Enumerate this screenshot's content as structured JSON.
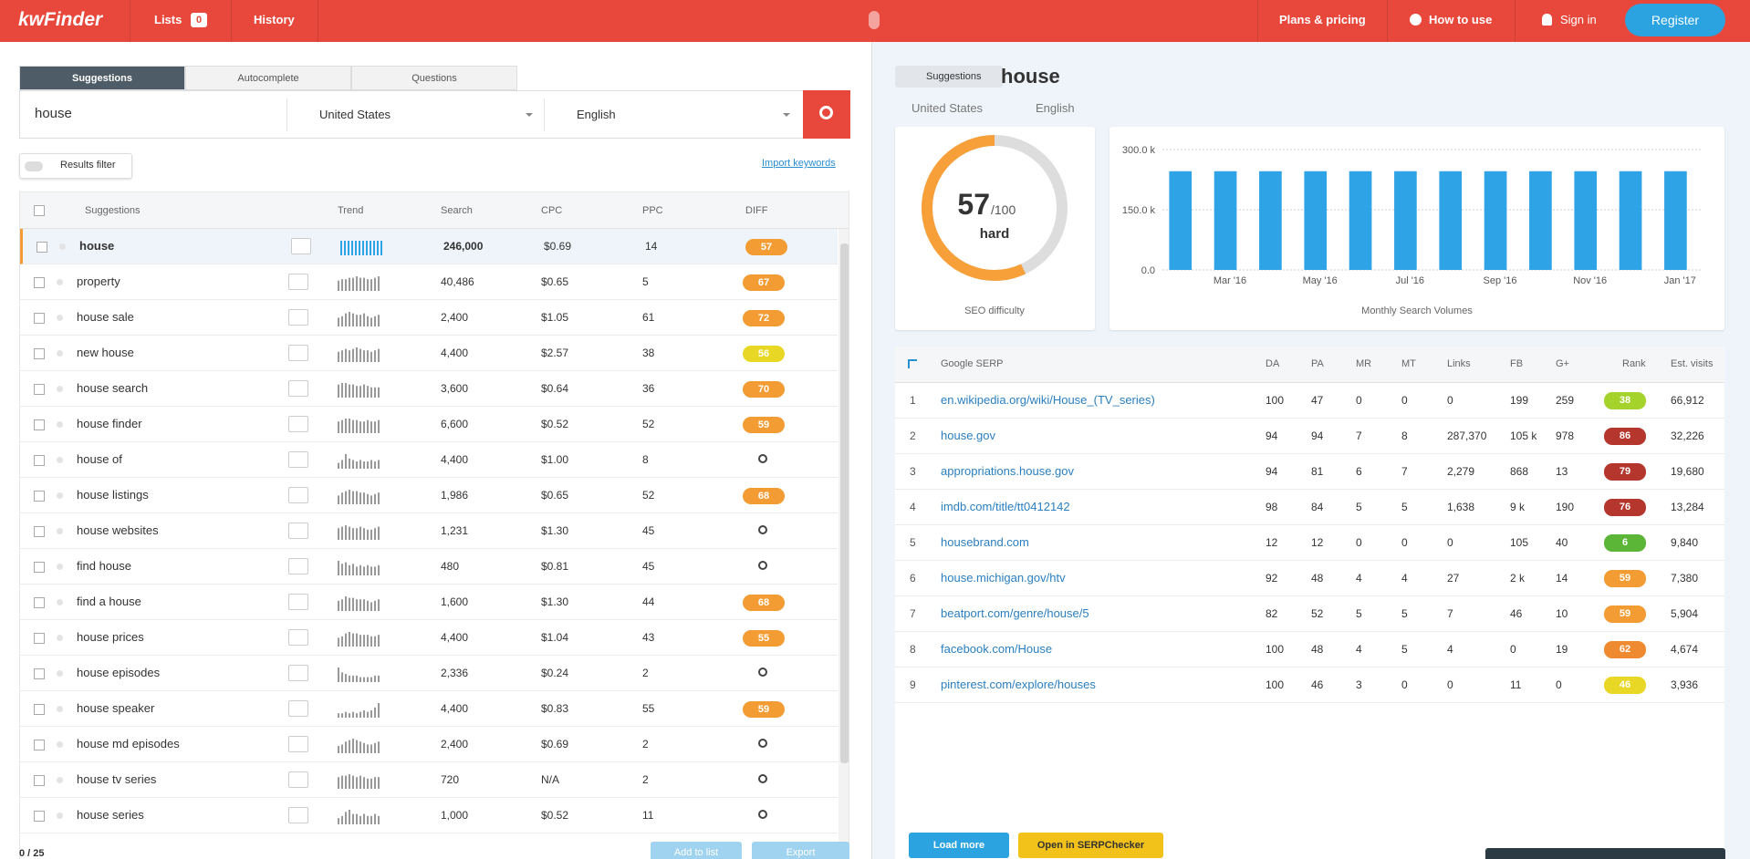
{
  "header": {
    "logo": "kwFinder",
    "nav": [
      "Lists",
      "History"
    ],
    "lists_count": "0",
    "right_nav": [
      "Plans & pricing",
      "How to use",
      "Sign in"
    ],
    "register": "Register"
  },
  "left": {
    "tabs": [
      "Suggestions",
      "Autocomplete",
      "Questions"
    ],
    "keyword": "house",
    "location": "United States",
    "language": "English",
    "results_filter": "Results filter",
    "import": "Import keywords",
    "columns": [
      "Suggestions",
      "Trend",
      "Search",
      "CPC",
      "PPC",
      "DIFF"
    ],
    "rows": [
      {
        "keyword": "house",
        "search": "246,000",
        "cpc": "$0.69",
        "ppc": 14,
        "diff": 57,
        "diff_color": "#f39c34",
        "trend": [
          10,
          10,
          10,
          10,
          10,
          10,
          10,
          10,
          10,
          10,
          10,
          10
        ]
      },
      {
        "keyword": "property",
        "search": "40,486",
        "cpc": "$0.65",
        "ppc": 5,
        "diff": 67,
        "diff_color": "#f39c34",
        "trend": [
          7,
          8,
          8,
          9,
          9,
          10,
          9,
          9,
          8,
          8,
          9,
          10
        ]
      },
      {
        "keyword": "house sale",
        "search": "2,400",
        "cpc": "$1.05",
        "ppc": 61,
        "diff": 72,
        "diff_color": "#f39c34",
        "trend": [
          6,
          7,
          9,
          10,
          9,
          8,
          8,
          9,
          7,
          6,
          7,
          8
        ]
      },
      {
        "keyword": "new house",
        "search": "4,400",
        "cpc": "$2.57",
        "ppc": 38,
        "diff": 56,
        "diff_color": "#e8d825",
        "trend": [
          7,
          8,
          9,
          8,
          9,
          10,
          9,
          8,
          8,
          7,
          8,
          9
        ]
      },
      {
        "keyword": "house search",
        "search": "3,600",
        "cpc": "$0.64",
        "ppc": 36,
        "diff": 70,
        "diff_color": "#f39c34",
        "trend": [
          9,
          10,
          10,
          9,
          9,
          8,
          8,
          9,
          8,
          7,
          7,
          7
        ]
      },
      {
        "keyword": "house finder",
        "search": "6,600",
        "cpc": "$0.52",
        "ppc": 52,
        "diff": 59,
        "diff_color": "#f39c34",
        "trend": [
          8,
          9,
          10,
          10,
          9,
          9,
          8,
          8,
          9,
          8,
          8,
          9
        ]
      },
      {
        "keyword": "house of",
        "search": "4,400",
        "cpc": "$1.00",
        "ppc": 8,
        "diff": null,
        "diff_color": null,
        "trend": [
          4,
          6,
          10,
          7,
          6,
          5,
          6,
          5,
          5,
          6,
          5,
          6
        ]
      },
      {
        "keyword": "house listings",
        "search": "1,986",
        "cpc": "$0.65",
        "ppc": 52,
        "diff": 68,
        "diff_color": "#f39c34",
        "trend": [
          6,
          8,
          9,
          10,
          9,
          9,
          8,
          8,
          7,
          6,
          7,
          8
        ]
      },
      {
        "keyword": "house websites",
        "search": "1,231",
        "cpc": "$1.30",
        "ppc": 45,
        "diff": null,
        "diff_color": null,
        "trend": [
          8,
          9,
          10,
          9,
          8,
          8,
          9,
          8,
          7,
          7,
          8,
          9
        ]
      },
      {
        "keyword": "find house",
        "search": "480",
        "cpc": "$0.81",
        "ppc": 45,
        "diff": null,
        "diff_color": null,
        "trend": [
          10,
          8,
          9,
          7,
          8,
          6,
          7,
          6,
          7,
          6,
          6,
          7
        ]
      },
      {
        "keyword": "find a house",
        "search": "1,600",
        "cpc": "$1.30",
        "ppc": 44,
        "diff": 68,
        "diff_color": "#f39c34",
        "trend": [
          7,
          8,
          10,
          9,
          9,
          8,
          8,
          8,
          7,
          6,
          7,
          8
        ]
      },
      {
        "keyword": "house prices",
        "search": "4,400",
        "cpc": "$1.04",
        "ppc": 43,
        "diff": 55,
        "diff_color": "#f39c34",
        "trend": [
          6,
          7,
          9,
          10,
          9,
          9,
          8,
          8,
          8,
          7,
          7,
          8
        ]
      },
      {
        "keyword": "house episodes",
        "search": "2,336",
        "cpc": "$0.24",
        "ppc": 2,
        "diff": null,
        "diff_color": null,
        "trend": [
          9,
          6,
          5,
          4,
          4,
          4,
          3,
          3,
          3,
          3,
          4,
          4
        ]
      },
      {
        "keyword": "house speaker",
        "search": "4,400",
        "cpc": "$0.83",
        "ppc": 55,
        "diff": 59,
        "diff_color": "#f39c34",
        "trend": [
          3,
          3,
          4,
          3,
          4,
          3,
          4,
          5,
          4,
          5,
          7,
          10
        ]
      },
      {
        "keyword": "house md episodes",
        "search": "2,400",
        "cpc": "$0.69",
        "ppc": 2,
        "diff": null,
        "diff_color": null,
        "trend": [
          5,
          6,
          8,
          9,
          10,
          9,
          8,
          7,
          6,
          6,
          7,
          8
        ]
      },
      {
        "keyword": "house tv series",
        "search": "720",
        "cpc": "N/A",
        "ppc": 2,
        "diff": null,
        "diff_color": null,
        "trend": [
          8,
          9,
          9,
          10,
          9,
          8,
          9,
          8,
          7,
          7,
          8,
          8
        ]
      },
      {
        "keyword": "house series",
        "search": "1,000",
        "cpc": "$0.52",
        "ppc": 11,
        "diff": null,
        "diff_color": null,
        "trend": [
          3,
          4,
          6,
          7,
          5,
          5,
          4,
          5,
          4,
          4,
          5,
          4
        ]
      }
    ],
    "count": "0 / 25",
    "add_to_list": "Add to list",
    "export": "Export"
  },
  "right": {
    "chip": "Suggestions",
    "keyword": "house",
    "location": "United States",
    "language": "English",
    "seo": {
      "score": 57,
      "max": 100,
      "max_label": "/100",
      "level": "hard",
      "label": "SEO difficulty",
      "color": "#f7a03a"
    },
    "chart_data": {
      "type": "bar",
      "title": "Monthly Search Volumes",
      "categories": [
        null,
        "Mar '16",
        null,
        "May '16",
        null,
        "Jul '16",
        null,
        "Sep '16",
        null,
        "Nov '16",
        null,
        "Jan '17"
      ],
      "values": [
        246000,
        246000,
        246000,
        246000,
        246000,
        246000,
        246000,
        246000,
        246000,
        246000,
        246000,
        246000
      ],
      "color": "#2ea3e6",
      "ylim": [
        0,
        300000
      ],
      "yticks": [
        {
          "value": 0,
          "label": "0.0"
        },
        {
          "value": 150000,
          "label": "150.0 k"
        },
        {
          "value": 300000,
          "label": "300.0 k"
        }
      ],
      "grid": true
    },
    "columns": [
      "Google SERP",
      "DA",
      "PA",
      "MR",
      "MT",
      "Links",
      "FB",
      "G+",
      "Rank",
      "Est. visits"
    ],
    "rows": [
      {
        "pos": "1",
        "url": "en.wikipedia.org/wiki/House_(TV_series)",
        "da": "100",
        "pa": "47",
        "mr": "0",
        "mt": "0",
        "links": "0",
        "fb": "199",
        "gp": "259",
        "rank": 38,
        "rank_color": "#a6d22c",
        "visits": "66,912"
      },
      {
        "pos": "2",
        "url": "house.gov",
        "da": "94",
        "pa": "94",
        "mr": "7",
        "mt": "8",
        "links": "287,370",
        "fb": "105 k",
        "gp": "978",
        "rank": 86,
        "rank_color": "#b5362c",
        "visits": "32,226"
      },
      {
        "pos": "3",
        "url": "appropriations.house.gov",
        "da": "94",
        "pa": "81",
        "mr": "6",
        "mt": "7",
        "links": "2,279",
        "fb": "868",
        "gp": "13",
        "rank": 79,
        "rank_color": "#b5362c",
        "visits": "19,680"
      },
      {
        "pos": "4",
        "url": "imdb.com/title/tt0412142",
        "da": "98",
        "pa": "84",
        "mr": "5",
        "mt": "5",
        "links": "1,638",
        "fb": "9 k",
        "gp": "190",
        "rank": 76,
        "rank_color": "#b5362c",
        "visits": "13,284"
      },
      {
        "pos": "5",
        "url": "housebrand.com",
        "da": "12",
        "pa": "12",
        "mr": "0",
        "mt": "0",
        "links": "0",
        "fb": "105",
        "gp": "40",
        "rank": 6,
        "rank_color": "#5bb537",
        "visits": "9,840"
      },
      {
        "pos": "6",
        "url": "house.michigan.gov/htv",
        "da": "92",
        "pa": "48",
        "mr": "4",
        "mt": "4",
        "links": "27",
        "fb": "2 k",
        "gp": "14",
        "rank": 59,
        "rank_color": "#f39c34",
        "visits": "7,380"
      },
      {
        "pos": "7",
        "url": "beatport.com/genre/house/5",
        "da": "82",
        "pa": "52",
        "mr": "5",
        "mt": "5",
        "links": "7",
        "fb": "46",
        "gp": "10",
        "rank": 59,
        "rank_color": "#f39c34",
        "visits": "5,904"
      },
      {
        "pos": "8",
        "url": "facebook.com/House",
        "da": "100",
        "pa": "48",
        "mr": "4",
        "mt": "5",
        "links": "4",
        "fb": "0",
        "gp": "19",
        "rank": 62,
        "rank_color": "#f08a30",
        "visits": "4,674"
      },
      {
        "pos": "9",
        "url": "pinterest.com/explore/houses",
        "da": "100",
        "pa": "46",
        "mr": "3",
        "mt": "0",
        "links": "0",
        "fb": "11",
        "gp": "0",
        "rank": 46,
        "rank_color": "#e8d825",
        "visits": "3,936"
      }
    ],
    "load_more": "Load more",
    "serpchecker": "Open in SERPChecker"
  }
}
